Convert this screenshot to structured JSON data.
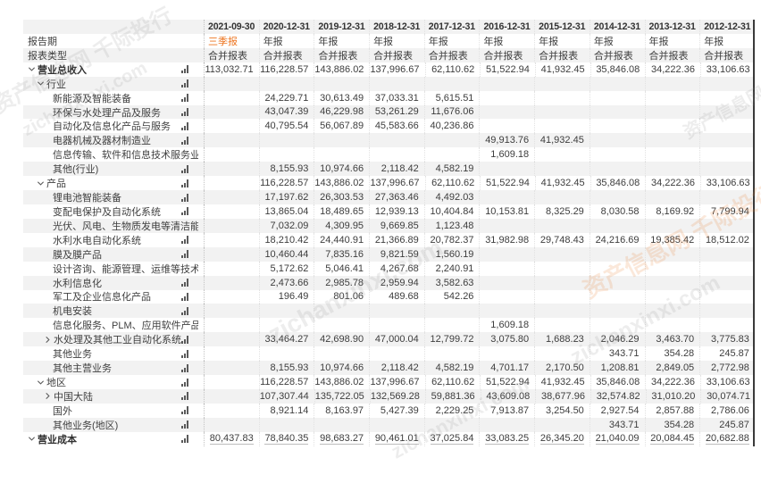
{
  "colors": {
    "accent_orange": "#ED7622",
    "stripe": "#F2F2F2",
    "pane_border": "#3A3A3A"
  },
  "table": {
    "row_header": {
      "period_label": "报告期",
      "type_label": "报表类型"
    },
    "columns": [
      {
        "date": "2021-09-30",
        "period": "三季报",
        "type": "合并报表",
        "highlight": true
      },
      {
        "date": "2020-12-31",
        "period": "年报",
        "type": "合并报表",
        "highlight": false
      },
      {
        "date": "2019-12-31",
        "period": "年报",
        "type": "合并报表",
        "highlight": false
      },
      {
        "date": "2018-12-31",
        "period": "年报",
        "type": "合并报表",
        "highlight": false
      },
      {
        "date": "2017-12-31",
        "period": "年报",
        "type": "合并报表",
        "highlight": false
      },
      {
        "date": "2016-12-31",
        "period": "年报",
        "type": "合并报表",
        "highlight": false
      },
      {
        "date": "2015-12-31",
        "period": "年报",
        "type": "合并报表",
        "highlight": false
      },
      {
        "date": "2014-12-31",
        "period": "年报",
        "type": "合并报表",
        "highlight": false
      },
      {
        "date": "2013-12-31",
        "period": "年报",
        "type": "合并报表",
        "highlight": false
      },
      {
        "date": "2012-12-31",
        "period": "年报",
        "type": "合并报表",
        "highlight": false
      }
    ],
    "rows": [
      {
        "label": "营业总收入",
        "level": 0,
        "arrow": "down",
        "bold": true,
        "values": [
          "113,032.71",
          "116,228.57",
          "143,886.02",
          "137,996.67",
          "62,110.62",
          "51,522.94",
          "41,932.45",
          "35,846.08",
          "34,222.36",
          "33,106.63"
        ]
      },
      {
        "label": "行业",
        "level": 1,
        "arrow": "down",
        "bold": false,
        "values": [
          "",
          "",
          "",
          "",
          "",
          "",
          "",
          "",
          "",
          ""
        ]
      },
      {
        "label": "新能源及智能装备",
        "level": 2,
        "arrow": null,
        "bold": false,
        "values": [
          "",
          "24,229.71",
          "30,613.49",
          "37,033.31",
          "5,615.51",
          "",
          "",
          "",
          "",
          ""
        ]
      },
      {
        "label": "环保与水处理产品及服务",
        "level": 2,
        "arrow": null,
        "bold": false,
        "values": [
          "",
          "43,047.39",
          "46,229.98",
          "53,261.29",
          "11,676.06",
          "",
          "",
          "",
          "",
          ""
        ]
      },
      {
        "label": "自动化及信息化产品与服务",
        "level": 2,
        "arrow": null,
        "bold": false,
        "values": [
          "",
          "40,795.54",
          "56,067.89",
          "45,583.66",
          "40,236.86",
          "",
          "",
          "",
          "",
          ""
        ]
      },
      {
        "label": "电器机械及器材制造业",
        "level": 2,
        "arrow": null,
        "bold": false,
        "values": [
          "",
          "",
          "",
          "",
          "",
          "49,913.76",
          "41,932.45",
          "",
          "",
          ""
        ]
      },
      {
        "label": "信息传输、软件和信息技术服务业",
        "level": 2,
        "arrow": null,
        "bold": false,
        "values": [
          "",
          "",
          "",
          "",
          "",
          "1,609.18",
          "",
          "",
          "",
          ""
        ]
      },
      {
        "label": "其他(行业)",
        "level": 2,
        "arrow": null,
        "bold": false,
        "values": [
          "",
          "8,155.93",
          "10,974.66",
          "2,118.42",
          "4,582.19",
          "",
          "",
          "",
          "",
          ""
        ]
      },
      {
        "label": "产品",
        "level": 1,
        "arrow": "down",
        "bold": false,
        "values": [
          "",
          "116,228.57",
          "143,886.02",
          "137,996.67",
          "62,110.62",
          "51,522.94",
          "41,932.45",
          "35,846.08",
          "34,222.36",
          "33,106.63"
        ]
      },
      {
        "label": "锂电池智能装备",
        "level": 2,
        "arrow": null,
        "bold": false,
        "values": [
          "",
          "17,197.62",
          "26,303.53",
          "27,363.46",
          "4,492.03",
          "",
          "",
          "",
          "",
          ""
        ]
      },
      {
        "label": "变配电保护及自动化系统",
        "level": 2,
        "arrow": null,
        "bold": false,
        "values": [
          "",
          "13,865.04",
          "18,489.65",
          "12,939.13",
          "10,404.84",
          "10,153.81",
          "8,325.29",
          "8,030.58",
          "8,169.92",
          "7,799.94"
        ]
      },
      {
        "label": "光伏、风电、生物质发电等清洁能源系统",
        "level": 2,
        "arrow": null,
        "bold": false,
        "values": [
          "",
          "7,032.09",
          "4,309.95",
          "9,669.85",
          "1,123.48",
          "",
          "",
          "",
          "",
          ""
        ]
      },
      {
        "label": "水利水电自动化系统",
        "level": 2,
        "arrow": null,
        "bold": false,
        "values": [
          "",
          "18,210.42",
          "24,440.91",
          "21,366.89",
          "20,782.37",
          "31,982.98",
          "29,748.43",
          "24,216.69",
          "19,385.42",
          "18,512.02"
        ]
      },
      {
        "label": "膜及膜产品",
        "level": 2,
        "arrow": null,
        "bold": false,
        "values": [
          "",
          "10,460.44",
          "7,835.16",
          "9,821.59",
          "1,560.19",
          "",
          "",
          "",
          "",
          ""
        ]
      },
      {
        "label": "设计咨询、能源管理、运维等技术服务",
        "level": 2,
        "arrow": null,
        "bold": false,
        "values": [
          "",
          "5,172.62",
          "5,046.41",
          "4,267.68",
          "2,240.91",
          "",
          "",
          "",
          "",
          ""
        ]
      },
      {
        "label": "水利信息化",
        "level": 2,
        "arrow": null,
        "bold": false,
        "values": [
          "",
          "2,473.66",
          "2,985.78",
          "2,959.94",
          "3,582.63",
          "",
          "",
          "",
          "",
          ""
        ]
      },
      {
        "label": "军工及企业信息化产品",
        "level": 2,
        "arrow": null,
        "bold": false,
        "values": [
          "",
          "196.49",
          "801.06",
          "489.68",
          "542.26",
          "",
          "",
          "",
          "",
          ""
        ]
      },
      {
        "label": "机电安装",
        "level": 2,
        "arrow": null,
        "bold": false,
        "values": [
          "",
          "",
          "",
          "",
          "",
          "",
          "",
          "",
          "",
          ""
        ]
      },
      {
        "label": "信息化服务、PLM、应用软件产品",
        "level": 2,
        "arrow": null,
        "bold": false,
        "values": [
          "",
          "",
          "",
          "",
          "",
          "1,609.18",
          "",
          "",
          "",
          ""
        ]
      },
      {
        "label": "水处理及其他工业自动化系统",
        "level": 2,
        "arrow": "right",
        "bold": false,
        "values": [
          "",
          "33,464.27",
          "42,698.90",
          "47,000.04",
          "12,799.72",
          "3,075.80",
          "1,688.23",
          "2,046.29",
          "3,463.70",
          "3,775.83"
        ]
      },
      {
        "label": "其他业务",
        "level": 2,
        "arrow": null,
        "bold": false,
        "values": [
          "",
          "",
          "",
          "",
          "",
          "",
          "",
          "343.71",
          "354.28",
          "245.87"
        ]
      },
      {
        "label": "其他主营业务",
        "level": 2,
        "arrow": null,
        "bold": false,
        "values": [
          "",
          "8,155.93",
          "10,974.66",
          "2,118.42",
          "4,582.19",
          "4,701.17",
          "2,170.50",
          "1,208.81",
          "2,849.05",
          "2,772.98"
        ]
      },
      {
        "label": "地区",
        "level": 1,
        "arrow": "down",
        "bold": false,
        "values": [
          "",
          "116,228.57",
          "143,886.02",
          "137,996.67",
          "62,110.62",
          "51,522.94",
          "41,932.45",
          "35,846.08",
          "34,222.36",
          "33,106.63"
        ]
      },
      {
        "label": "中国大陆",
        "level": 2,
        "arrow": "right",
        "bold": false,
        "values": [
          "",
          "107,307.44",
          "135,722.05",
          "132,569.28",
          "59,881.36",
          "43,609.08",
          "38,677.96",
          "32,574.82",
          "31,010.20",
          "30,074.71"
        ]
      },
      {
        "label": "国外",
        "level": 2,
        "arrow": null,
        "bold": false,
        "values": [
          "",
          "8,921.14",
          "8,163.97",
          "5,427.39",
          "2,229.25",
          "7,913.87",
          "3,254.50",
          "2,927.54",
          "2,857.88",
          "2,786.06"
        ]
      },
      {
        "label": "其他业务(地区)",
        "level": 2,
        "arrow": null,
        "bold": false,
        "values": [
          "",
          "",
          "",
          "",
          "",
          "",
          "",
          "343.71",
          "354.28",
          "245.87"
        ]
      },
      {
        "label": "营业成本",
        "level": 0,
        "arrow": "down",
        "bold": true,
        "underline_values": true,
        "values": [
          "80,437.83",
          "78,840.35",
          "98,683.27",
          "90,461.01",
          "37,025.84",
          "33,083.25",
          "26,345.20",
          "21,040.09",
          "20,084.45",
          "20,682.88"
        ]
      }
    ]
  },
  "watermarks": {
    "site_cn": "资产信息网 千际投行",
    "site_en": "zichanxinxi.com"
  }
}
